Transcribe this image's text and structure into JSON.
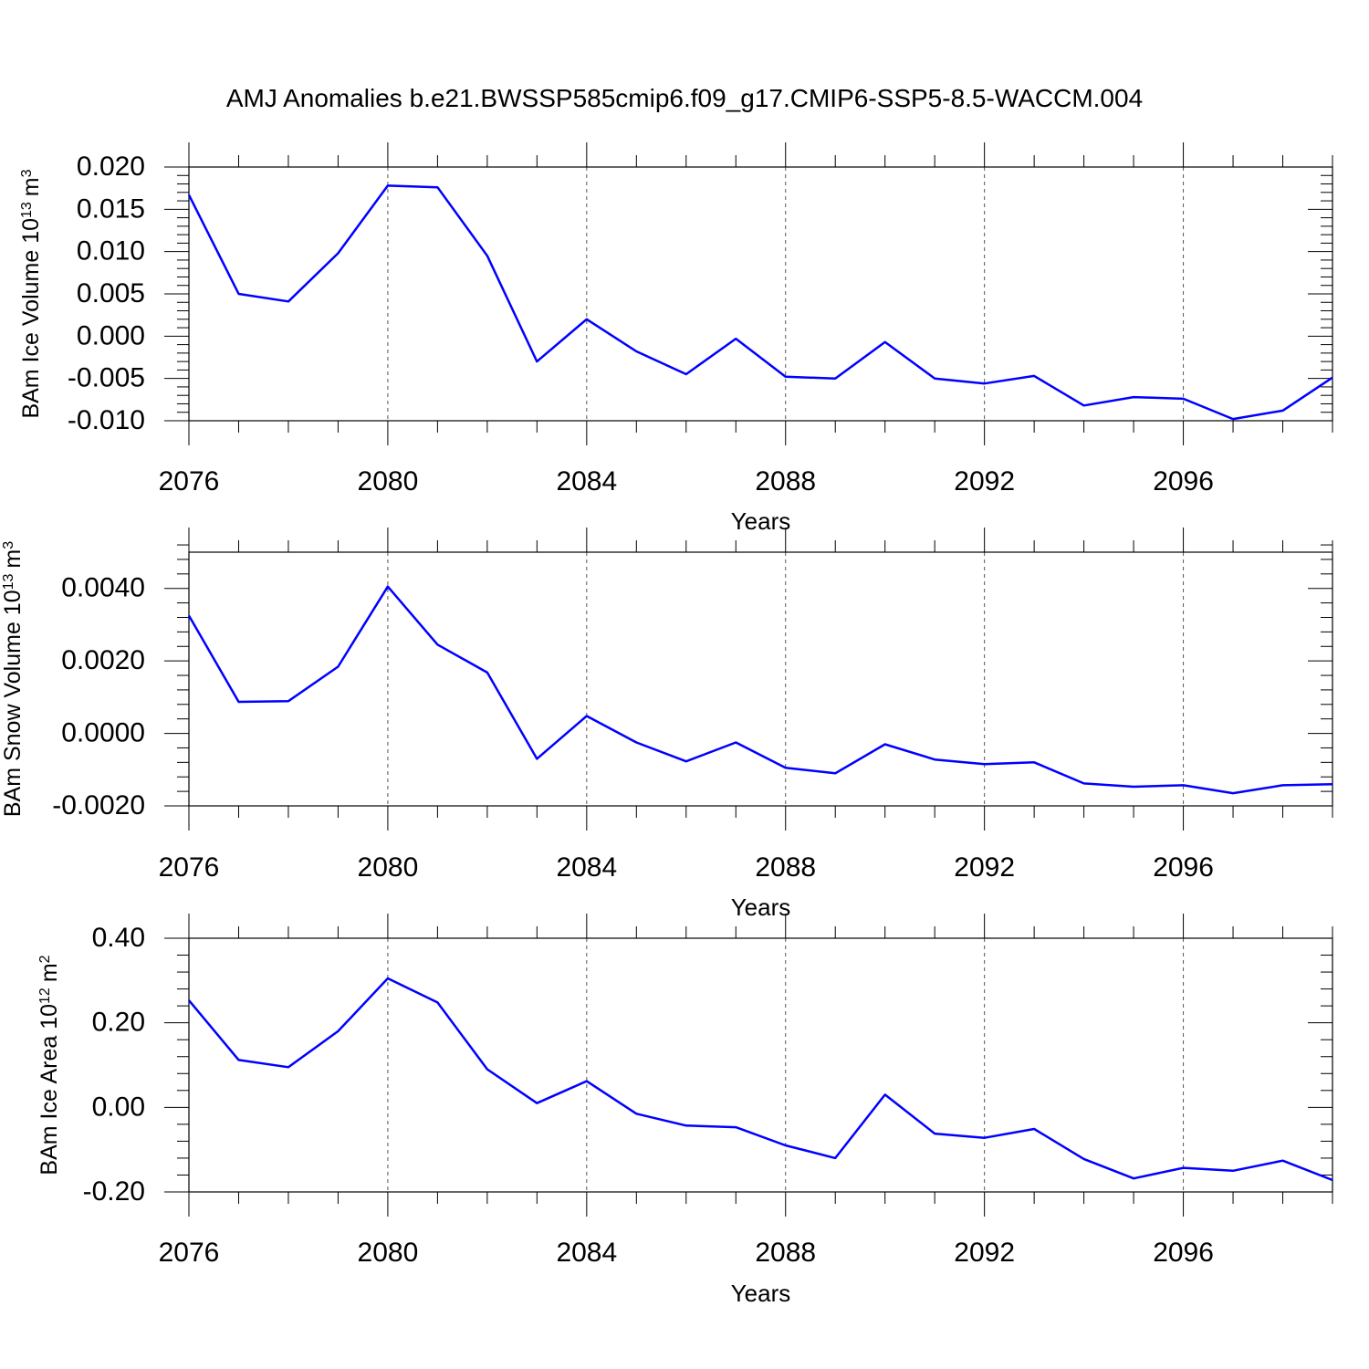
{
  "title": "AMJ Anomalies b.e21.BWSSP585cmip6.f09_g17.CMIP6-SSP5-8.5-WACCM.004",
  "colors": {
    "line": "#0000ff",
    "grid": "#555555",
    "frame": "#000000"
  },
  "chart_data": [
    {
      "type": "line",
      "ylabel": "BAm Ice Volume 10",
      "ylabel_exp": "13",
      "ylabel_unit": "m",
      "ylabel_unit_exp": "3",
      "xlabel": "Years",
      "xlim": [
        2076,
        2099
      ],
      "ylim": [
        -0.01,
        0.02
      ],
      "x_ticks": [
        2076,
        2080,
        2084,
        2088,
        2092,
        2096
      ],
      "x_tick_labels": [
        "2076",
        "2080",
        "2084",
        "2088",
        "2092",
        "2096"
      ],
      "y_ticks": [
        -0.01,
        -0.005,
        0.0,
        0.005,
        0.01,
        0.015,
        0.02
      ],
      "y_tick_labels": [
        "-0.010",
        "-0.005",
        "0.000",
        "0.005",
        "0.010",
        "0.015",
        "0.020"
      ],
      "y_minor_step": 0.001,
      "grid_x": true,
      "x": [
        2076,
        2077,
        2078,
        2079,
        2080,
        2081,
        2082,
        2083,
        2084,
        2085,
        2086,
        2087,
        2088,
        2089,
        2090,
        2091,
        2092,
        2093,
        2094,
        2095,
        2096,
        2097,
        2098,
        2099
      ],
      "series": [
        {
          "values": [
            0.0167,
            0.005,
            0.0041,
            0.0098,
            0.0178,
            0.0176,
            0.0095,
            -0.003,
            0.002,
            -0.0018,
            -0.0045,
            -0.0003,
            -0.0048,
            -0.005,
            -0.0007,
            -0.005,
            -0.0056,
            -0.0047,
            -0.0082,
            -0.0072,
            -0.0074,
            -0.0098,
            -0.0088,
            -0.0049
          ]
        }
      ]
    },
    {
      "type": "line",
      "ylabel": "BAm Snow Volume 10",
      "ylabel_exp": "13",
      "ylabel_unit": "m",
      "ylabel_unit_exp": "3",
      "xlabel": "Years",
      "xlim": [
        2076,
        2099
      ],
      "ylim": [
        -0.002,
        0.005
      ],
      "x_ticks": [
        2076,
        2080,
        2084,
        2088,
        2092,
        2096
      ],
      "x_tick_labels": [
        "2076",
        "2080",
        "2084",
        "2088",
        "2092",
        "2096"
      ],
      "y_ticks": [
        -0.002,
        0.0,
        0.002,
        0.004
      ],
      "y_tick_labels": [
        "-0.0020",
        "0.0000",
        "0.0020",
        "0.0040"
      ],
      "y_minor_step": 0.0004,
      "grid_x": true,
      "x": [
        2076,
        2077,
        2078,
        2079,
        2080,
        2081,
        2082,
        2083,
        2084,
        2085,
        2086,
        2087,
        2088,
        2089,
        2090,
        2091,
        2092,
        2093,
        2094,
        2095,
        2096,
        2097,
        2098,
        2099
      ],
      "series": [
        {
          "values": [
            0.00325,
            0.00087,
            0.00089,
            0.00184,
            0.00405,
            0.00245,
            0.00168,
            -0.0007,
            0.00048,
            -0.00025,
            -0.00077,
            -0.00025,
            -0.00095,
            -0.0011,
            -0.0003,
            -0.00072,
            -0.00085,
            -0.0008,
            -0.00138,
            -0.00147,
            -0.00143,
            -0.00165,
            -0.00143,
            -0.0014
          ]
        }
      ]
    },
    {
      "type": "line",
      "ylabel": "BAm Ice Area 10",
      "ylabel_exp": "12",
      "ylabel_unit": "m",
      "ylabel_unit_exp": "2",
      "xlabel": "Years",
      "xlim": [
        2076,
        2099
      ],
      "ylim": [
        -0.2,
        0.4
      ],
      "x_ticks": [
        2076,
        2080,
        2084,
        2088,
        2092,
        2096
      ],
      "x_tick_labels": [
        "2076",
        "2080",
        "2084",
        "2088",
        "2092",
        "2096"
      ],
      "y_ticks": [
        -0.2,
        0.0,
        0.2,
        0.4
      ],
      "y_tick_labels": [
        "-0.20",
        "0.00",
        "0.20",
        "0.40"
      ],
      "y_minor_step": 0.04,
      "grid_x": true,
      "x": [
        2076,
        2077,
        2078,
        2079,
        2080,
        2081,
        2082,
        2083,
        2084,
        2085,
        2086,
        2087,
        2088,
        2089,
        2090,
        2091,
        2092,
        2093,
        2094,
        2095,
        2096,
        2097,
        2098,
        2099
      ],
      "series": [
        {
          "values": [
            0.253,
            0.112,
            0.095,
            0.18,
            0.305,
            0.248,
            0.09,
            0.01,
            0.062,
            -0.015,
            -0.043,
            -0.047,
            -0.09,
            -0.12,
            0.03,
            -0.062,
            -0.072,
            -0.051,
            -0.122,
            -0.168,
            -0.143,
            -0.15,
            -0.126,
            -0.172
          ]
        }
      ]
    }
  ]
}
